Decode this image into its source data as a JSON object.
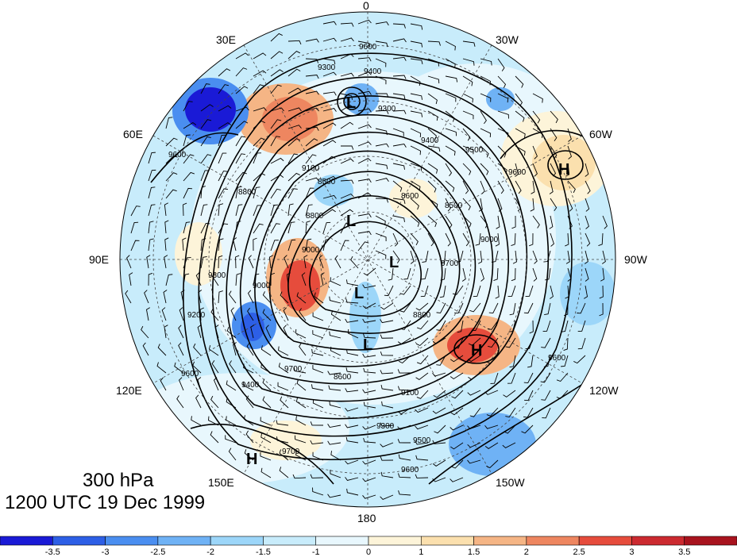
{
  "title": {
    "level": "300 hPa",
    "time": "1200 UTC 19 Dec 1999"
  },
  "longitude_labels": [
    "0",
    "30W",
    "60W",
    "90W",
    "120W",
    "150W",
    "180",
    "150E",
    "120E",
    "90E",
    "60E",
    "30E"
  ],
  "contour_labels": [
    "9600",
    "9400",
    "9300",
    "9500",
    "9600",
    "9300",
    "9400",
    "9100",
    "8800",
    "8500",
    "8500",
    "8600",
    "8800",
    "9000",
    "9000",
    "9000",
    "8800",
    "9100",
    "9600",
    "9400",
    "9700",
    "9300",
    "9500",
    "9600",
    "8600",
    "9700",
    "9700",
    "9600",
    "9600",
    "9200",
    "9300"
  ],
  "pressure_systems": [
    "L",
    "L",
    "L",
    "L",
    "L",
    "H",
    "H",
    "H"
  ],
  "colorbar": {
    "ticks": [
      "-3.5",
      "-3",
      "-2.5",
      "-2",
      "-1.5",
      "-1",
      "0",
      "1",
      "1.5",
      "2",
      "2.5",
      "3",
      "3.5"
    ],
    "colors": [
      "#1a1ad6",
      "#2d5fe6",
      "#4a8ef0",
      "#6fb2f5",
      "#9cd6f9",
      "#c8ecfb",
      "#e8f7fd",
      "#fdf4d9",
      "#fbe0ae",
      "#f5b585",
      "#ee8660",
      "#e64c3c",
      "#cc2a30",
      "#a8131e"
    ]
  }
}
